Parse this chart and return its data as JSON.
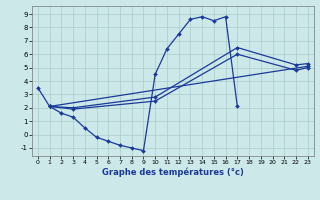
{
  "xlabel": "Graphe des températures (°c)",
  "ylabel": "",
  "background_color": "#cce8e8",
  "line_color": "#1a3a9a",
  "grid_color": "#aacccc",
  "xlim": [
    -0.5,
    23.5
  ],
  "ylim": [
    -1.6,
    9.6
  ],
  "xticks": [
    0,
    1,
    2,
    3,
    4,
    5,
    6,
    7,
    8,
    9,
    10,
    11,
    12,
    13,
    14,
    15,
    16,
    17,
    18,
    19,
    20,
    21,
    22,
    23
  ],
  "yticks": [
    -1,
    0,
    1,
    2,
    3,
    4,
    5,
    6,
    7,
    8,
    9
  ],
  "series": [
    {
      "x": [
        0,
        1,
        2,
        3,
        4,
        5,
        6,
        7,
        8,
        9,
        10,
        11,
        12,
        13,
        14,
        15,
        16,
        17
      ],
      "y": [
        3.5,
        2.1,
        1.6,
        1.3,
        0.5,
        -0.2,
        -0.5,
        -0.8,
        -1.0,
        -1.2,
        4.5,
        6.4,
        7.5,
        8.6,
        8.8,
        8.5,
        8.8,
        2.1
      ]
    },
    {
      "x": [
        1,
        3,
        10,
        17,
        22,
        23
      ],
      "y": [
        2.1,
        2.0,
        2.8,
        6.5,
        5.2,
        5.3
      ]
    },
    {
      "x": [
        1,
        3,
        10,
        17,
        22,
        23
      ],
      "y": [
        2.1,
        1.9,
        2.5,
        6.0,
        4.8,
        5.0
      ]
    },
    {
      "x": [
        1,
        23
      ],
      "y": [
        2.1,
        5.1
      ]
    }
  ]
}
